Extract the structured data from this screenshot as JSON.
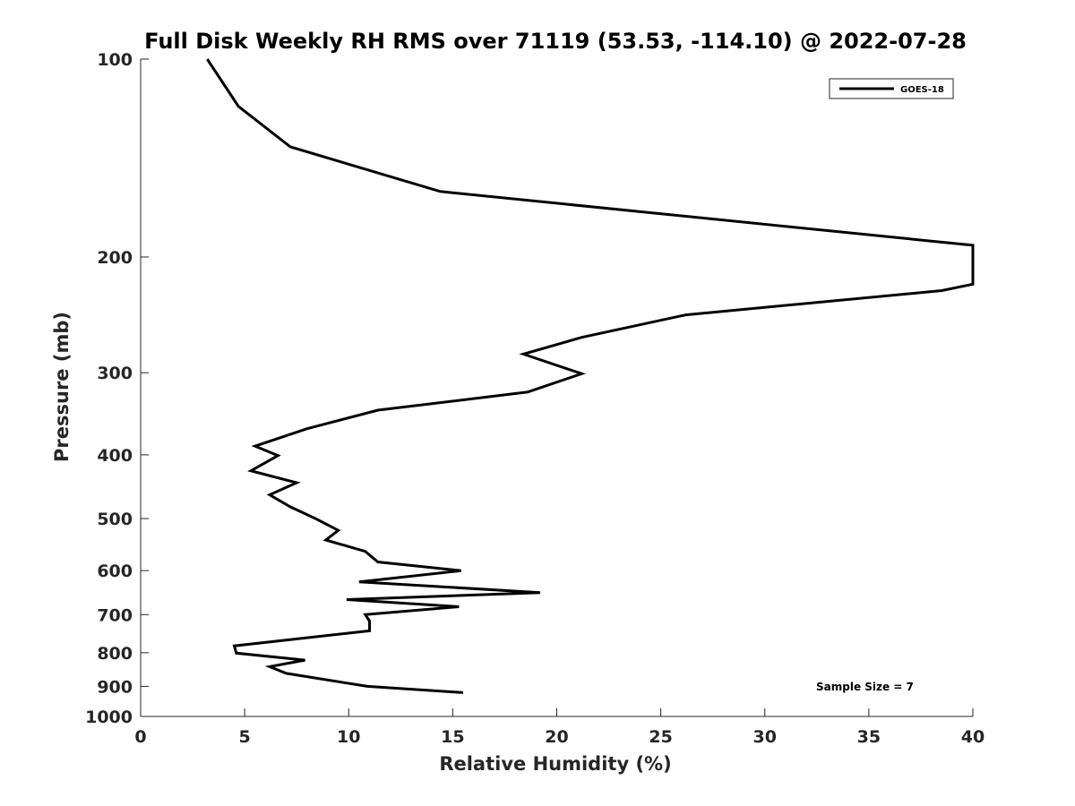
{
  "chart_data": {
    "type": "line",
    "title": "Full Disk Weekly RH RMS over 71119 (53.53, -114.10) @ 2022-07-28",
    "xlabel": "Relative Humidity (%)",
    "ylabel": "Pressure (mb)",
    "xlim": [
      0,
      40
    ],
    "ylim": [
      100,
      1000
    ],
    "yscale": "log",
    "y_reversed": true,
    "grid": false,
    "legend_position": "top-right",
    "x_ticks": [
      "0",
      "5",
      "10",
      "15",
      "20",
      "25",
      "30",
      "35",
      "40"
    ],
    "y_ticks": [
      "100",
      "200",
      "300",
      "400",
      "500",
      "600",
      "700",
      "800",
      "900",
      "1000"
    ],
    "annotation": "Sample Size = 7",
    "series": [
      {
        "name": "GOES-18",
        "color": "#000000",
        "points": [
          {
            "x": 3.2,
            "y": 100
          },
          {
            "x": 4.7,
            "y": 118
          },
          {
            "x": 7.2,
            "y": 136
          },
          {
            "x": 14.4,
            "y": 159
          },
          {
            "x": 40.0,
            "y": 192
          },
          {
            "x": 40.0,
            "y": 220
          },
          {
            "x": 38.5,
            "y": 225
          },
          {
            "x": 26.2,
            "y": 245
          },
          {
            "x": 21.2,
            "y": 265
          },
          {
            "x": 18.4,
            "y": 281
          },
          {
            "x": 21.2,
            "y": 301
          },
          {
            "x": 18.6,
            "y": 321
          },
          {
            "x": 11.4,
            "y": 342
          },
          {
            "x": 8.0,
            "y": 365
          },
          {
            "x": 5.5,
            "y": 388
          },
          {
            "x": 6.6,
            "y": 401
          },
          {
            "x": 5.3,
            "y": 423
          },
          {
            "x": 7.5,
            "y": 441
          },
          {
            "x": 6.2,
            "y": 460
          },
          {
            "x": 7.2,
            "y": 480
          },
          {
            "x": 8.4,
            "y": 500
          },
          {
            "x": 9.5,
            "y": 521
          },
          {
            "x": 8.9,
            "y": 539
          },
          {
            "x": 10.8,
            "y": 561
          },
          {
            "x": 11.4,
            "y": 582
          },
          {
            "x": 15.4,
            "y": 600
          },
          {
            "x": 10.5,
            "y": 624
          },
          {
            "x": 19.2,
            "y": 648
          },
          {
            "x": 9.9,
            "y": 664
          },
          {
            "x": 15.3,
            "y": 681
          },
          {
            "x": 10.8,
            "y": 700
          },
          {
            "x": 11.0,
            "y": 716
          },
          {
            "x": 11.0,
            "y": 741
          },
          {
            "x": 4.5,
            "y": 781
          },
          {
            "x": 4.6,
            "y": 801
          },
          {
            "x": 7.9,
            "y": 821
          },
          {
            "x": 6.2,
            "y": 840
          },
          {
            "x": 7.0,
            "y": 860
          },
          {
            "x": 10.9,
            "y": 900
          },
          {
            "x": 15.5,
            "y": 920
          }
        ]
      }
    ]
  }
}
